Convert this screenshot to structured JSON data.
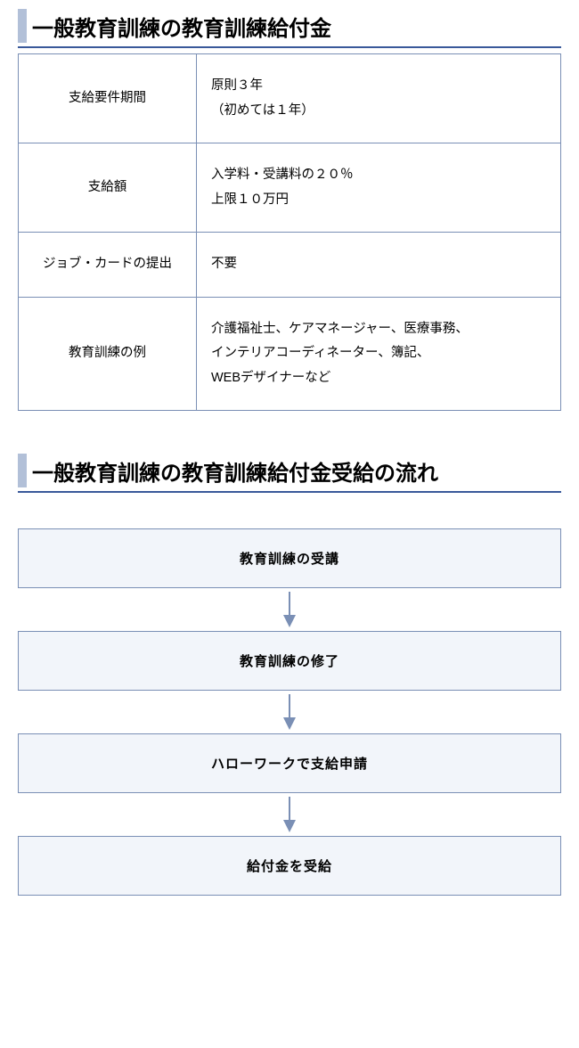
{
  "section1": {
    "title": "一般教育訓練の教育訓練給付金",
    "rows": [
      {
        "label": "支給要件期間",
        "value": "原則３年\n（初めては１年）"
      },
      {
        "label": "支給額",
        "value": "入学料・受講料の２０％\n上限１０万円"
      },
      {
        "label": "ジョブ・カードの提出",
        "value": "不要"
      },
      {
        "label": "教育訓練の例",
        "value": "介護福祉士、ケアマネージャー、医療事務、\nインテリアコーディネーター、簿記、\nWEBデザイナーなど"
      }
    ]
  },
  "section2": {
    "title": "一般教育訓練の教育訓練給付金受給の流れ",
    "steps": [
      "教育訓練の受講",
      "教育訓練の修了",
      "ハローワークで支給申請",
      "給付金を受給"
    ]
  },
  "colors": {
    "title_underline": "#39599a",
    "title_bar": "#b2c0d8",
    "border": "#7a8fb5",
    "flow_bg": "#f2f5fa",
    "arrow": "#7a8fb5"
  }
}
